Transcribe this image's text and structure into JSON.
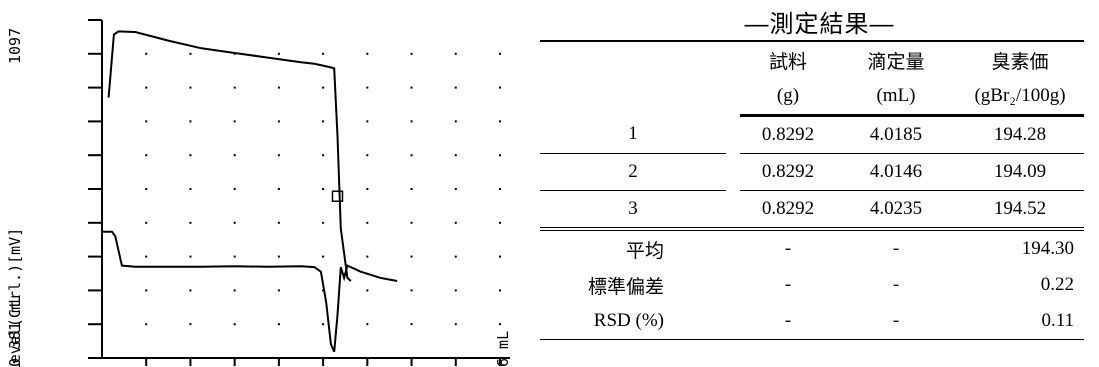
{
  "chart_data": {
    "type": "line",
    "title": "",
    "y_top_label": "1097",
    "ylabel": "Level(Ctrl.)[mV]",
    "y_bottom_label": "0 381 mL",
    "x_right_label": "6 mL",
    "xlim": [
      0,
      6
    ],
    "ylim": [
      0,
      1097
    ],
    "grid": "dotted",
    "series": [
      {
        "x": [
          0.1,
          0.18,
          0.25,
          0.5,
          1.0,
          1.5,
          2.0,
          2.5,
          3.0,
          3.2,
          3.35,
          3.45,
          3.5,
          3.55,
          3.6,
          3.7,
          3.75
        ],
        "y": [
          845,
          1050,
          1060,
          1058,
          1030,
          1005,
          990,
          975,
          960,
          955,
          948,
          943,
          940,
          720,
          420,
          260,
          250
        ]
      },
      {
        "x": [
          0.0,
          0.15,
          0.2,
          0.3,
          0.5,
          1.0,
          1.5,
          2.0,
          2.5,
          3.0,
          3.2,
          3.3,
          3.38,
          3.45,
          3.5,
          3.55,
          3.6,
          3.65,
          3.7,
          3.9,
          4.2,
          4.45
        ],
        "y": [
          410,
          410,
          395,
          300,
          296,
          296,
          296,
          298,
          296,
          298,
          295,
          280,
          180,
          45,
          20,
          140,
          295,
          260,
          300,
          280,
          260,
          250
        ]
      }
    ],
    "marker": {
      "x": 3.55,
      "y": 525
    }
  },
  "results": {
    "title": "—測定結果—",
    "headers": [
      "",
      "試料",
      "滴定量",
      "臭素価"
    ],
    "units": [
      "",
      "(g)",
      "(mL)",
      "(gBr₂/100g)"
    ],
    "rows": [
      [
        "1",
        "0.8292",
        "4.0185",
        "194.28"
      ],
      [
        "2",
        "0.8292",
        "4.0146",
        "194.09"
      ],
      [
        "3",
        "0.8292",
        "4.0235",
        "194.52"
      ]
    ],
    "stats": [
      [
        "平均",
        "-",
        "-",
        "194.30"
      ],
      [
        "標準偏差",
        "-",
        "-",
        "0.22"
      ],
      [
        "RSD (%)",
        "-",
        "-",
        "0.11"
      ]
    ]
  }
}
